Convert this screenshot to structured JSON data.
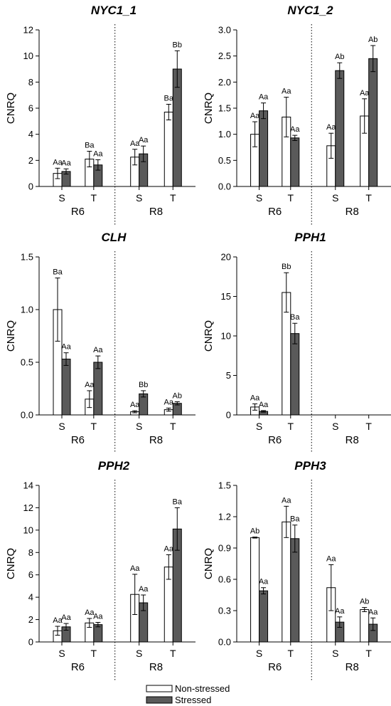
{
  "legend": {
    "entries": [
      {
        "label": "Non-stressed",
        "color": "#ffffff"
      },
      {
        "label": "Stressed",
        "color": "#5a5a5a"
      }
    ]
  },
  "chart_data": [
    {
      "type": "bar",
      "title": "NYC1_1",
      "ylabel": "CNRQ",
      "ylim": [
        0,
        12
      ],
      "yticks": [
        "0",
        "2",
        "4",
        "6",
        "8",
        "10",
        "12"
      ],
      "groups": [
        "R6",
        "R8"
      ],
      "categories": [
        "S",
        "T"
      ],
      "series": [
        {
          "name": "Non-stressed",
          "values": [
            [
              1.0,
              2.1
            ],
            [
              2.25,
              5.7
            ]
          ],
          "errors": [
            [
              0.4,
              0.6
            ],
            [
              0.6,
              0.6
            ]
          ],
          "labels": [
            [
              "Aa",
              "Ba"
            ],
            [
              "Aa",
              "Ba"
            ]
          ]
        },
        {
          "name": "Stressed",
          "values": [
            [
              1.15,
              1.65
            ],
            [
              2.5,
              9.0
            ]
          ],
          "errors": [
            [
              0.2,
              0.4
            ],
            [
              0.6,
              1.4
            ]
          ],
          "labels": [
            [
              "Aa",
              "Aa"
            ],
            [
              "Aa",
              "Bb"
            ]
          ]
        }
      ]
    },
    {
      "type": "bar",
      "title": "NYC1_2",
      "ylabel": "CNRQ",
      "ylim": [
        0,
        3.0
      ],
      "yticks": [
        "0.0",
        "0.5",
        "1.0",
        "1.5",
        "2.0",
        "2.5",
        "3.0"
      ],
      "groups": [
        "R6",
        "R8"
      ],
      "categories": [
        "S",
        "T"
      ],
      "series": [
        {
          "name": "Non-stressed",
          "values": [
            [
              1.0,
              1.33
            ],
            [
              0.78,
              1.35
            ]
          ],
          "errors": [
            [
              0.24,
              0.38
            ],
            [
              0.24,
              0.33
            ]
          ],
          "labels": [
            [
              "Aa",
              "Aa"
            ],
            [
              "Aa",
              "Aa"
            ]
          ]
        },
        {
          "name": "Stressed",
          "values": [
            [
              1.45,
              0.93
            ],
            [
              2.22,
              2.45
            ]
          ],
          "errors": [
            [
              0.15,
              0.05
            ],
            [
              0.15,
              0.25
            ]
          ],
          "labels": [
            [
              "Aa",
              "Aa"
            ],
            [
              "Ab",
              "Ab"
            ]
          ]
        }
      ]
    },
    {
      "type": "bar",
      "title": "CLH",
      "ylabel": "CNRQ",
      "ylim": [
        0,
        1.5
      ],
      "yticks": [
        "0.0",
        "0.5",
        "1.0",
        "1.5"
      ],
      "groups": [
        "R6",
        "R8"
      ],
      "categories": [
        "S",
        "T"
      ],
      "series": [
        {
          "name": "Non-stressed",
          "values": [
            [
              1.0,
              0.15
            ],
            [
              0.03,
              0.05
            ]
          ],
          "errors": [
            [
              0.3,
              0.08
            ],
            [
              0.01,
              0.015
            ]
          ],
          "labels": [
            [
              "Ba",
              "Aa"
            ],
            [
              "Aa",
              "Aa"
            ]
          ]
        },
        {
          "name": "Stressed",
          "values": [
            [
              0.53,
              0.5
            ],
            [
              0.2,
              0.11
            ]
          ],
          "errors": [
            [
              0.06,
              0.06
            ],
            [
              0.03,
              0.015
            ]
          ],
          "labels": [
            [
              "Aa",
              "Aa"
            ],
            [
              "Bb",
              "Ab"
            ]
          ]
        }
      ]
    },
    {
      "type": "bar",
      "title": "PPH1",
      "ylabel": "CNRQ",
      "ylim": [
        0,
        20
      ],
      "yticks": [
        "0",
        "5",
        "10",
        "15",
        "20"
      ],
      "groups": [
        "R6",
        "R8"
      ],
      "categories": [
        "S",
        "T"
      ],
      "series": [
        {
          "name": "Non-stressed",
          "values": [
            [
              1.0,
              15.5
            ],
            [
              null,
              null
            ]
          ],
          "errors": [
            [
              0.4,
              2.5
            ],
            [
              null,
              null
            ]
          ],
          "labels": [
            [
              "Aa",
              "Bb"
            ],
            [
              "",
              ""
            ]
          ]
        },
        {
          "name": "Stressed",
          "values": [
            [
              0.45,
              10.3
            ],
            [
              null,
              null
            ]
          ],
          "errors": [
            [
              0.1,
              1.3
            ],
            [
              null,
              null
            ]
          ],
          "labels": [
            [
              "Aa",
              "Ba"
            ],
            [
              "",
              ""
            ]
          ]
        }
      ]
    },
    {
      "type": "bar",
      "title": "PPH2",
      "ylabel": "CNRQ",
      "ylim": [
        0,
        14
      ],
      "yticks": [
        "0",
        "2",
        "4",
        "6",
        "8",
        "10",
        "12",
        "14"
      ],
      "groups": [
        "R6",
        "R8"
      ],
      "categories": [
        "S",
        "T"
      ],
      "series": [
        {
          "name": "Non-stressed",
          "values": [
            [
              1.0,
              1.7
            ],
            [
              4.25,
              6.7
            ]
          ],
          "errors": [
            [
              0.4,
              0.4
            ],
            [
              1.8,
              1.1
            ]
          ],
          "labels": [
            [
              "Aa",
              "Aa"
            ],
            [
              "Aa",
              "Aa"
            ]
          ]
        },
        {
          "name": "Stressed",
          "values": [
            [
              1.35,
              1.55
            ],
            [
              3.5,
              10.1
            ]
          ],
          "errors": [
            [
              0.3,
              0.2
            ],
            [
              0.7,
              1.9
            ]
          ],
          "labels": [
            [
              "Aa",
              "Aa"
            ],
            [
              "Aa",
              "Ba"
            ]
          ]
        }
      ]
    },
    {
      "type": "bar",
      "title": "PPH3",
      "ylabel": "CNRQ",
      "ylim": [
        0,
        1.5
      ],
      "yticks": [
        "0.0",
        "0.3",
        "0.6",
        "0.9",
        "1.2",
        "1.5"
      ],
      "groups": [
        "R6",
        "R8"
      ],
      "categories": [
        "S",
        "T"
      ],
      "series": [
        {
          "name": "Non-stressed",
          "values": [
            [
              1.0,
              1.15
            ],
            [
              0.52,
              0.31
            ]
          ],
          "errors": [
            [
              0.005,
              0.15
            ],
            [
              0.22,
              0.02
            ]
          ],
          "labels": [
            [
              "Ab",
              "Aa"
            ],
            [
              "Aa",
              "Ab"
            ]
          ]
        },
        {
          "name": "Stressed",
          "values": [
            [
              0.49,
              0.99
            ],
            [
              0.19,
              0.17
            ]
          ],
          "errors": [
            [
              0.03,
              0.13
            ],
            [
              0.05,
              0.06
            ]
          ],
          "labels": [
            [
              "Aa",
              "Ba"
            ],
            [
              "Aa",
              "Aa"
            ]
          ]
        }
      ]
    }
  ]
}
